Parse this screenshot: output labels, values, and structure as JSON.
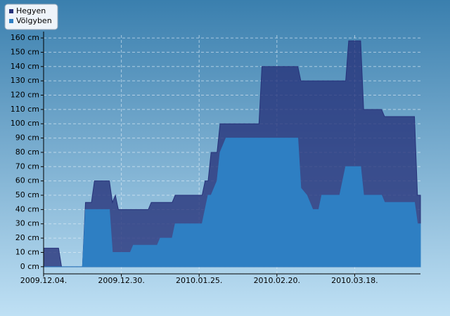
{
  "chart_data": {
    "type": "area",
    "x": [
      "2009-12-04",
      "2009-12-09",
      "2009-12-10",
      "2009-12-17",
      "2009-12-18",
      "2009-12-20",
      "2009-12-21",
      "2009-12-26",
      "2009-12-27",
      "2009-12-28",
      "2009-12-29",
      "2010-01-02",
      "2010-01-03",
      "2010-01-08",
      "2010-01-09",
      "2010-01-11",
      "2010-01-12",
      "2010-01-16",
      "2010-01-17",
      "2010-01-26",
      "2010-01-27",
      "2010-01-28",
      "2010-01-29",
      "2010-01-31",
      "2010-02-01",
      "2010-02-03",
      "2010-02-14",
      "2010-02-15",
      "2010-02-27",
      "2010-02-28",
      "2010-03-02",
      "2010-03-04",
      "2010-03-06",
      "2010-03-07",
      "2010-03-13",
      "2010-03-14",
      "2010-03-15",
      "2010-03-16",
      "2010-03-20",
      "2010-03-21",
      "2010-03-27",
      "2010-03-28",
      "2010-04-07",
      "2010-04-08",
      "2010-04-09"
    ],
    "series": [
      {
        "name": "Hegyen",
        "color": "#27337a",
        "values": [
          13,
          13,
          0,
          0,
          45,
          45,
          60,
          60,
          45,
          50,
          40,
          40,
          40,
          40,
          45,
          45,
          45,
          45,
          50,
          50,
          60,
          60,
          80,
          80,
          100,
          100,
          100,
          140,
          140,
          130,
          130,
          130,
          130,
          130,
          130,
          130,
          130,
          158,
          158,
          110,
          110,
          105,
          105,
          50,
          50
        ]
      },
      {
        "name": "Völgyben",
        "color": "#2e7fc3",
        "values": [
          0,
          0,
          0,
          0,
          40,
          40,
          40,
          40,
          10,
          10,
          10,
          10,
          15,
          15,
          15,
          15,
          20,
          20,
          30,
          30,
          40,
          50,
          50,
          60,
          80,
          90,
          90,
          90,
          90,
          55,
          50,
          40,
          40,
          50,
          50,
          60,
          70,
          70,
          70,
          50,
          50,
          45,
          45,
          30,
          30
        ]
      }
    ],
    "xlim": [
      "2009-12-04",
      "2010-04-09"
    ],
    "xticks": [
      {
        "value": "2009-12-04",
        "label": "2009.12.04."
      },
      {
        "value": "2009-12-30",
        "label": "2009.12.30."
      },
      {
        "value": "2010-01-25",
        "label": "2010.01.25."
      },
      {
        "value": "2010-02-20",
        "label": "2010.02.20."
      },
      {
        "value": "2010-03-18",
        "label": "2010.03.18."
      }
    ],
    "ylim": [
      -5,
      162
    ],
    "yticks": [
      {
        "value": 0,
        "label": "0 cm"
      },
      {
        "value": 10,
        "label": "10 cm"
      },
      {
        "value": 20,
        "label": "20 cm"
      },
      {
        "value": 30,
        "label": "30 cm"
      },
      {
        "value": 40,
        "label": "40 cm"
      },
      {
        "value": 50,
        "label": "50 cm"
      },
      {
        "value": 60,
        "label": "60 cm"
      },
      {
        "value": 70,
        "label": "70 cm"
      },
      {
        "value": 80,
        "label": "80 cm"
      },
      {
        "value": 90,
        "label": "90 cm"
      },
      {
        "value": 100,
        "label": "100 cm"
      },
      {
        "value": 110,
        "label": "110 cm"
      },
      {
        "value": 120,
        "label": "120 cm"
      },
      {
        "value": 130,
        "label": "130 cm"
      },
      {
        "value": 140,
        "label": "140 cm"
      },
      {
        "value": 150,
        "label": "150 cm"
      },
      {
        "value": 160,
        "label": "160 cm"
      }
    ],
    "grid": true,
    "legend": "top-left"
  }
}
